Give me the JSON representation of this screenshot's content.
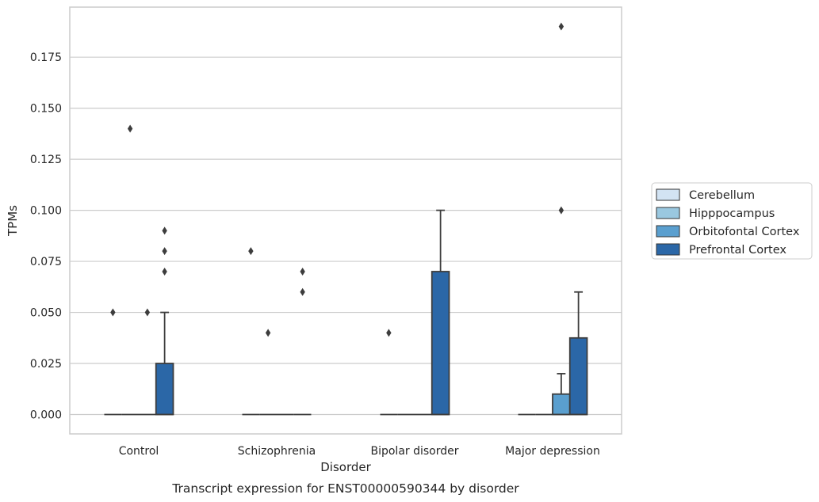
{
  "caption": "Transcript expression for ENST00000590344 by disorder",
  "chart_data": {
    "type": "box",
    "xlabel": "Disorder",
    "ylabel": "TPMs",
    "ylim": [
      -0.0095,
      0.1995
    ],
    "yticks": [
      0.0,
      0.025,
      0.05,
      0.075,
      0.1,
      0.125,
      0.15,
      0.175
    ],
    "ytick_labels": [
      "0.000",
      "0.025",
      "0.050",
      "0.075",
      "0.100",
      "0.125",
      "0.150",
      "0.175"
    ],
    "grid": "horizontal",
    "legend_position": "right",
    "categories": [
      "Control",
      "Schizophrenia",
      "Bipolar disorder",
      "Major depression"
    ],
    "series": [
      {
        "name": "Cerebellum",
        "color": "#d2e3f3",
        "boxes": [
          {
            "q1": 0,
            "median": 0,
            "q3": 0,
            "whisker_low": 0,
            "whisker_high": 0,
            "outliers": [
              0.05
            ]
          },
          {
            "q1": 0,
            "median": 0,
            "q3": 0,
            "whisker_low": 0,
            "whisker_high": 0,
            "outliers": [
              0.08
            ]
          },
          {
            "q1": 0,
            "median": 0,
            "q3": 0,
            "whisker_low": 0,
            "whisker_high": 0,
            "outliers": [
              0.04
            ]
          },
          {
            "q1": 0,
            "median": 0,
            "q3": 0,
            "whisker_low": 0,
            "whisker_high": 0,
            "outliers": []
          }
        ]
      },
      {
        "name": "Hipppocampus",
        "color": "#9ac8e0",
        "boxes": [
          {
            "q1": 0,
            "median": 0,
            "q3": 0,
            "whisker_low": 0,
            "whisker_high": 0,
            "outliers": [
              0.14
            ]
          },
          {
            "q1": 0,
            "median": 0,
            "q3": 0,
            "whisker_low": 0,
            "whisker_high": 0,
            "outliers": [
              0.04
            ]
          },
          {
            "q1": 0,
            "median": 0,
            "q3": 0,
            "whisker_low": 0,
            "whisker_high": 0,
            "outliers": []
          },
          {
            "q1": 0,
            "median": 0,
            "q3": 0,
            "whisker_low": 0,
            "whisker_high": 0,
            "outliers": []
          }
        ]
      },
      {
        "name": "Orbitofontal Cortex",
        "color": "#5a9fcf",
        "boxes": [
          {
            "q1": 0,
            "median": 0,
            "q3": 0,
            "whisker_low": 0,
            "whisker_high": 0,
            "outliers": [
              0.05
            ]
          },
          {
            "q1": 0,
            "median": 0,
            "q3": 0,
            "whisker_low": 0,
            "whisker_high": 0,
            "outliers": []
          },
          {
            "q1": 0,
            "median": 0,
            "q3": 0,
            "whisker_low": 0,
            "whisker_high": 0,
            "outliers": []
          },
          {
            "q1": 0,
            "median": 0,
            "q3": 0.01,
            "whisker_low": 0,
            "whisker_high": 0.02,
            "outliers": [
              0.19,
              0.1
            ]
          }
        ]
      },
      {
        "name": "Prefrontal Cortex",
        "color": "#2b67a7",
        "boxes": [
          {
            "q1": 0,
            "median": 0,
            "q3": 0.025,
            "whisker_low": 0,
            "whisker_high": 0.05,
            "outliers": [
              0.09,
              0.08,
              0.07
            ]
          },
          {
            "q1": 0,
            "median": 0,
            "q3": 0,
            "whisker_low": 0,
            "whisker_high": 0,
            "outliers": [
              0.07,
              0.06
            ]
          },
          {
            "q1": 0,
            "median": 0,
            "q3": 0.07,
            "whisker_low": 0,
            "whisker_high": 0.1,
            "outliers": []
          },
          {
            "q1": 0,
            "median": 0,
            "q3": 0.0375,
            "whisker_low": 0,
            "whisker_high": 0.06,
            "outliers": []
          }
        ]
      }
    ]
  }
}
